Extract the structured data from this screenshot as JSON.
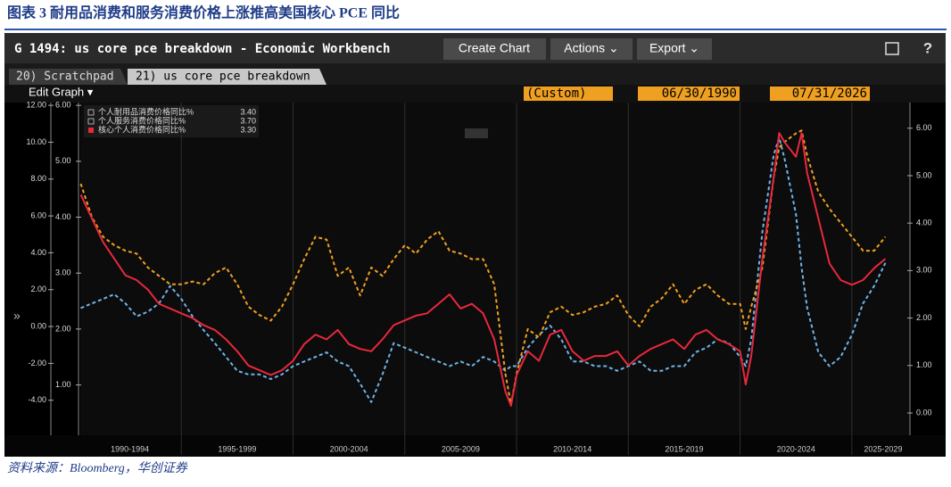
{
  "report": {
    "title": "图表 3 耐用品消费和服务消费价格上涨推高美国核心 PCE 同比",
    "source": "资料来源：Bloomberg，华创证券"
  },
  "window": {
    "title": "G 1494: us core pce breakdown - Economic Workbench",
    "buttons": [
      "Create Chart",
      "Actions ⌄",
      "Export ⌄"
    ],
    "tabs": [
      "20) Scratchpad",
      "21) us core pce breakdown"
    ],
    "edit": "Edit Graph ▾",
    "range": "(Custom)",
    "start": "06/30/1990",
    "end": "07/31/2026"
  },
  "chart_data": {
    "type": "line",
    "x": [
      1990.5,
      1991.0,
      1991.5,
      1992.0,
      1992.5,
      1993.0,
      1993.5,
      1994.0,
      1994.5,
      1995.0,
      1995.5,
      1996.0,
      1996.5,
      1997.0,
      1997.5,
      1998.0,
      1998.5,
      1999.0,
      1999.5,
      2000.0,
      2000.5,
      2001.0,
      2001.5,
      2002.0,
      2002.5,
      2003.0,
      2003.5,
      2004.0,
      2004.5,
      2005.0,
      2005.5,
      2006.0,
      2006.5,
      2007.0,
      2007.5,
      2008.0,
      2008.5,
      2009.0,
      2009.5,
      2009.75,
      2010.0,
      2010.5,
      2011.0,
      2011.5,
      2012.0,
      2012.5,
      2013.0,
      2013.5,
      2014.0,
      2014.5,
      2015.0,
      2015.5,
      2016.0,
      2016.5,
      2017.0,
      2017.5,
      2018.0,
      2018.5,
      2019.0,
      2019.5,
      2020.0,
      2020.25,
      2020.5,
      2021.0,
      2021.5,
      2021.75,
      2022.0,
      2022.5,
      2022.75,
      2023.0,
      2023.5,
      2024.0,
      2024.5,
      2025.0,
      2025.5,
      2026.0,
      2026.5
    ],
    "xlim": [
      1990.48,
      2027.6
    ],
    "xticks": [
      {
        "value": 1992.7,
        "label": "1990-1994"
      },
      {
        "value": 1997.5,
        "label": "1995-1999"
      },
      {
        "value": 2002.5,
        "label": "2000-2004"
      },
      {
        "value": 2007.5,
        "label": "2005-2009"
      },
      {
        "value": 2012.5,
        "label": "2010-2014"
      },
      {
        "value": 2017.5,
        "label": "2015-2019"
      },
      {
        "value": 2022.5,
        "label": "2020-2024"
      },
      {
        "value": 2026.4,
        "label": "2025-2029"
      }
    ],
    "xgrid": [
      1995,
      2000,
      2005,
      2010,
      2015,
      2020,
      2025
    ],
    "ylim": [
      -5.9,
      12.15
    ],
    "yticks": [
      {
        "value": 12,
        "label": "12.00"
      },
      {
        "value": 10,
        "label": "10.00"
      },
      {
        "value": 8,
        "label": "8.00"
      },
      {
        "value": 6,
        "label": "6.00"
      },
      {
        "value": 4,
        "label": "4.00"
      },
      {
        "value": 2,
        "label": "2.00"
      },
      {
        "value": 0,
        "label": "0.00"
      },
      {
        "value": -2,
        "label": "-2.00"
      },
      {
        "value": -4,
        "label": "-4.00"
      }
    ],
    "y3lim": [
      0.1,
      6.05
    ],
    "y3ticks": [
      {
        "value": 6,
        "label": "6.00"
      },
      {
        "value": 5,
        "label": "5.00"
      },
      {
        "value": 4,
        "label": "4.00"
      },
      {
        "value": 3,
        "label": "3.00"
      },
      {
        "value": 2,
        "label": "2.00"
      },
      {
        "value": 1,
        "label": "1.00"
      }
    ],
    "y2lim": [
      -0.47,
      6.54
    ],
    "y2ticks": [
      {
        "value": 6,
        "label": "6.00"
      },
      {
        "value": 5,
        "label": "5.00"
      },
      {
        "value": 4,
        "label": "4.00"
      },
      {
        "value": 3,
        "label": "3.00"
      },
      {
        "value": 2,
        "label": "2.00"
      },
      {
        "value": 1,
        "label": "1.00"
      },
      {
        "value": 0,
        "label": "0.00"
      }
    ],
    "series": [
      {
        "name": "个人耐用品消费价格同比%",
        "legend_value": "3.40",
        "color": "#6fb3e8",
        "dashed": true,
        "axis": "y",
        "values": [
          1.0,
          1.25,
          1.5,
          1.75,
          1.25,
          0.55,
          0.8,
          1.25,
          2.2,
          1.5,
          0.55,
          -0.2,
          -0.9,
          -1.65,
          -2.4,
          -2.6,
          -2.6,
          -2.85,
          -2.6,
          -2.15,
          -1.9,
          -1.65,
          -1.4,
          -1.9,
          -2.15,
          -3.1,
          -4.1,
          -2.6,
          -0.9,
          -1.15,
          -1.4,
          -1.65,
          -1.9,
          -2.15,
          -1.9,
          -2.15,
          -1.65,
          -1.9,
          -2.4,
          -2.15,
          -2.15,
          -1.15,
          -0.45,
          0.05,
          -0.7,
          -1.9,
          -1.9,
          -2.15,
          -2.15,
          -2.4,
          -2.15,
          -1.9,
          -2.4,
          -2.4,
          -2.15,
          -2.15,
          -1.4,
          -1.15,
          -0.7,
          -0.9,
          -1.65,
          -2.15,
          -0.7,
          5.15,
          9.3,
          10.25,
          9.05,
          6.1,
          3.2,
          1.0,
          -1.4,
          -2.15,
          -1.65,
          -0.45,
          1.25,
          2.2,
          3.45
        ]
      },
      {
        "name": "个人服务消费价格同比%",
        "legend_value": "3.70",
        "color": "#f0a020",
        "dashed": true,
        "axis": "y3",
        "values": [
          4.6,
          4.0,
          3.65,
          3.5,
          3.4,
          3.35,
          3.1,
          2.95,
          2.8,
          2.8,
          2.85,
          2.8,
          3.0,
          3.1,
          2.8,
          2.4,
          2.25,
          2.15,
          2.4,
          2.8,
          3.25,
          3.65,
          3.6,
          2.95,
          3.1,
          2.6,
          3.1,
          2.95,
          3.25,
          3.5,
          3.35,
          3.6,
          3.75,
          3.4,
          3.35,
          3.25,
          3.25,
          2.8,
          1.2,
          0.65,
          1.2,
          2.0,
          1.85,
          2.3,
          2.4,
          2.25,
          2.3,
          2.4,
          2.45,
          2.6,
          2.25,
          2.05,
          2.4,
          2.55,
          2.8,
          2.45,
          2.7,
          2.8,
          2.6,
          2.45,
          2.45,
          2.0,
          2.4,
          3.1,
          4.7,
          5.25,
          5.35,
          5.5,
          5.55,
          5.1,
          4.45,
          4.15,
          3.9,
          3.65,
          3.4,
          3.4,
          3.65
        ]
      },
      {
        "name": "核心个人消费价格同比%",
        "legend_value": "3.30",
        "color": "#e8283c",
        "dashed": false,
        "axis": "y2",
        "values": [
          4.6,
          4.1,
          3.6,
          3.25,
          2.9,
          2.8,
          2.6,
          2.3,
          2.2,
          2.1,
          2.0,
          1.85,
          1.75,
          1.55,
          1.3,
          1.0,
          0.9,
          0.8,
          0.9,
          1.1,
          1.45,
          1.65,
          1.55,
          1.75,
          1.45,
          1.35,
          1.3,
          1.55,
          1.85,
          1.95,
          2.05,
          2.1,
          2.3,
          2.5,
          2.2,
          2.3,
          2.1,
          1.55,
          0.45,
          0.15,
          0.8,
          1.3,
          1.1,
          1.65,
          1.75,
          1.3,
          1.1,
          1.2,
          1.2,
          1.3,
          1.0,
          1.2,
          1.35,
          1.45,
          1.55,
          1.35,
          1.65,
          1.75,
          1.55,
          1.45,
          1.3,
          0.6,
          1.2,
          3.25,
          4.95,
          5.9,
          5.7,
          5.4,
          5.9,
          5.05,
          4.1,
          3.15,
          2.8,
          2.7,
          2.8,
          3.05,
          3.25
        ]
      }
    ]
  }
}
